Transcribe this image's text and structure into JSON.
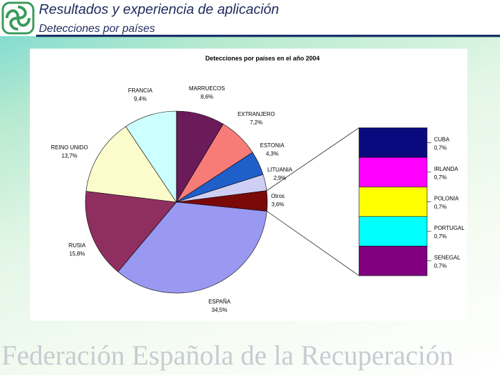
{
  "header": {
    "title": "Resultados y experiencia de aplicación",
    "subtitle": "Detecciones por países"
  },
  "footer": {
    "text": "Federación Española de la Recuperación"
  },
  "colors": {
    "title": "#1f2a5e",
    "rule": "#1b2f6e",
    "footer": "#c7ccd3"
  },
  "chart_data": {
    "type": "pie",
    "title": "Detecciones por países en el año 2004",
    "slices": [
      {
        "label": "MARRUECOS",
        "value_label": "8,6%",
        "value": 8.6,
        "color": "#6b1a5a"
      },
      {
        "label": "EXTRANJERO",
        "value_label": "7,2%",
        "value": 7.2,
        "color": "#f77c78"
      },
      {
        "label": "ESTONIA",
        "value_label": "4,3%",
        "value": 4.3,
        "color": "#1f5fc9"
      },
      {
        "label": "LITUANIA",
        "value_label": "2,9%",
        "value": 2.9,
        "color": "#cfcff5"
      },
      {
        "label": "Otros",
        "value_label": "3,6%",
        "value": 3.6,
        "color": "#7a0a0a"
      },
      {
        "label": "ESPAÑA",
        "value_label": "34,5%",
        "value": 34.5,
        "color": "#9999f2"
      },
      {
        "label": "RUSIA",
        "value_label": "15,8%",
        "value": 15.8,
        "color": "#8f2f5f"
      },
      {
        "label": "REINO UNIDO",
        "value_label": "13,7%",
        "value": 13.7,
        "color": "#fbfbcb"
      },
      {
        "label": "FRANCIA",
        "value_label": "9,4%",
        "value": 9.4,
        "color": "#ccffff"
      }
    ],
    "breakdown_of": "Otros",
    "breakdown": [
      {
        "label": "CUBA",
        "value_label": "0,7%",
        "value": 0.7,
        "color": "#0a0a7f"
      },
      {
        "label": "IRLANDA",
        "value_label": "0,7%",
        "value": 0.7,
        "color": "#ff00ff"
      },
      {
        "label": "POLONIA",
        "value_label": "0,7%",
        "value": 0.7,
        "color": "#ffff00"
      },
      {
        "label": "PORTUGAL",
        "value_label": "0,7%",
        "value": 0.7,
        "color": "#00ffff"
      },
      {
        "label": "SENEGAL",
        "value_label": "0,7%",
        "value": 0.7,
        "color": "#800080"
      }
    ]
  }
}
